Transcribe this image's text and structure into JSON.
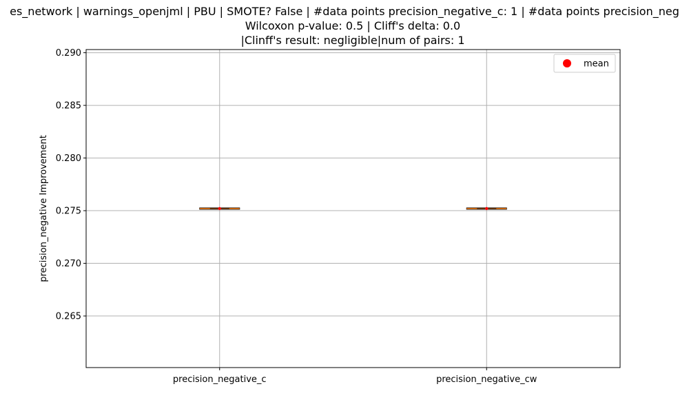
{
  "chart_data": {
    "type": "box",
    "title_lines": [
      "es_network | warnings_openjml | PBU | SMOTE? False | #data points precision_negative_c: 1 | #data points precision_neg",
      "Wilcoxon p-value: 0.5 | Cliff's delta: 0.0",
      "|Clinff's result: negligible|num of pairs: 1"
    ],
    "ylabel": "precision_negative Improvement",
    "xlabel": "",
    "categories": [
      "precision_negative_c",
      "precision_negative_cw"
    ],
    "series": [
      {
        "values": [
          0.2752,
          0.2752
        ],
        "means": [
          0.2752,
          0.2752
        ]
      }
    ],
    "ylim": [
      0.2601,
      0.2903
    ],
    "yticks": [
      "0.265",
      "0.270",
      "0.275",
      "0.280",
      "0.285",
      "0.290"
    ],
    "ytick_values": [
      0.265,
      0.27,
      0.275,
      0.28,
      0.285,
      0.29
    ],
    "grid": true,
    "legend": {
      "placement": "top-right",
      "entries": [
        {
          "label": "mean",
          "color": "#ff0000"
        }
      ]
    },
    "colors": {
      "median": "#ff7f0e",
      "box": "#000000",
      "mean": "#ff0000",
      "grid": "#b0b0b0"
    }
  }
}
